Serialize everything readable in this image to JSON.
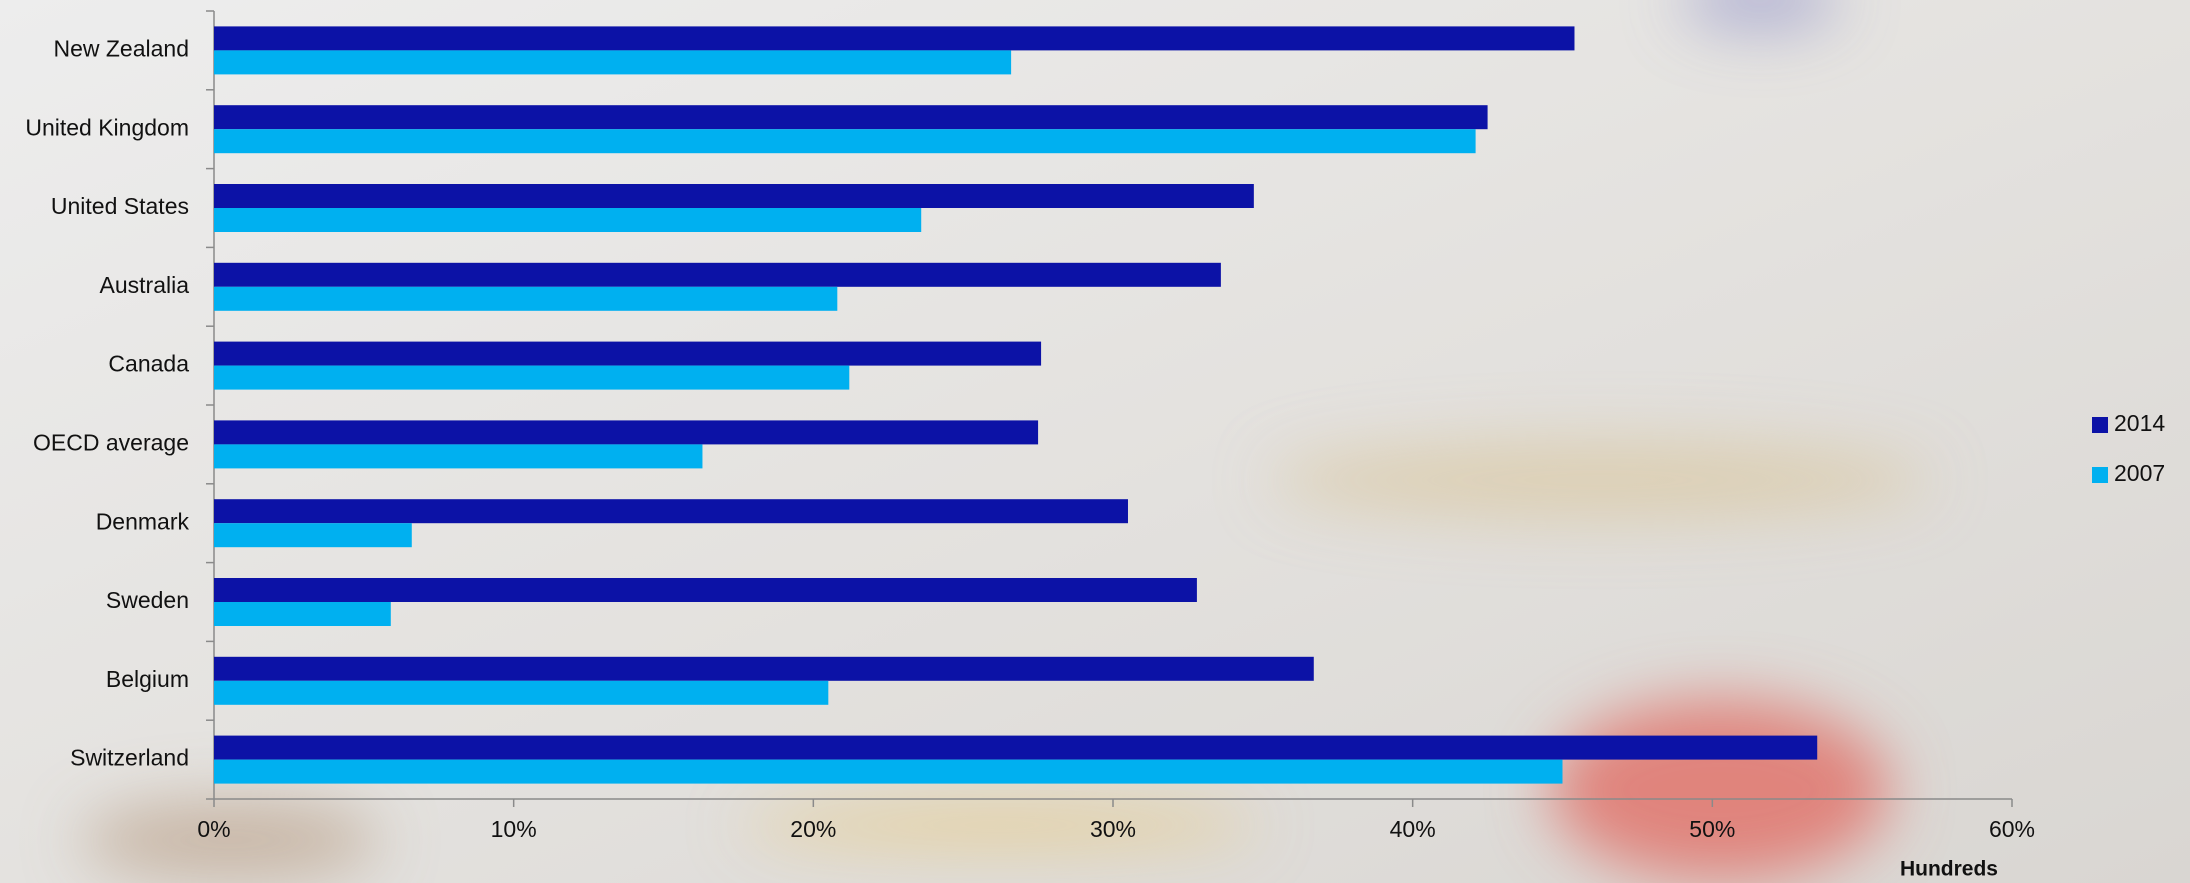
{
  "chart_data": {
    "type": "bar",
    "orientation": "horizontal",
    "categories": [
      "New Zealand",
      "United Kingdom",
      "United States",
      "Australia",
      "Canada",
      "OECD average",
      "Denmark",
      "Sweden",
      "Belgium",
      "Switzerland"
    ],
    "series": [
      {
        "name": "2014",
        "color": "#0c12a6",
        "values": [
          45.4,
          42.5,
          34.7,
          33.6,
          27.6,
          27.5,
          30.5,
          32.8,
          36.7,
          53.5
        ]
      },
      {
        "name": "2007",
        "color": "#00b0f0",
        "values": [
          26.6,
          42.1,
          23.6,
          20.8,
          21.2,
          16.3,
          6.6,
          5.9,
          20.5,
          45.0
        ]
      }
    ],
    "xlim": [
      0,
      60
    ],
    "xticks": [
      {
        "value": 0,
        "label": "0%"
      },
      {
        "value": 10,
        "label": "10%"
      },
      {
        "value": 20,
        "label": "20%"
      },
      {
        "value": 30,
        "label": "30%"
      },
      {
        "value": 40,
        "label": "40%"
      },
      {
        "value": 50,
        "label": "50%"
      },
      {
        "value": 60,
        "label": "60%"
      }
    ],
    "x_axis_label": "Hundreds",
    "legend": "right"
  }
}
